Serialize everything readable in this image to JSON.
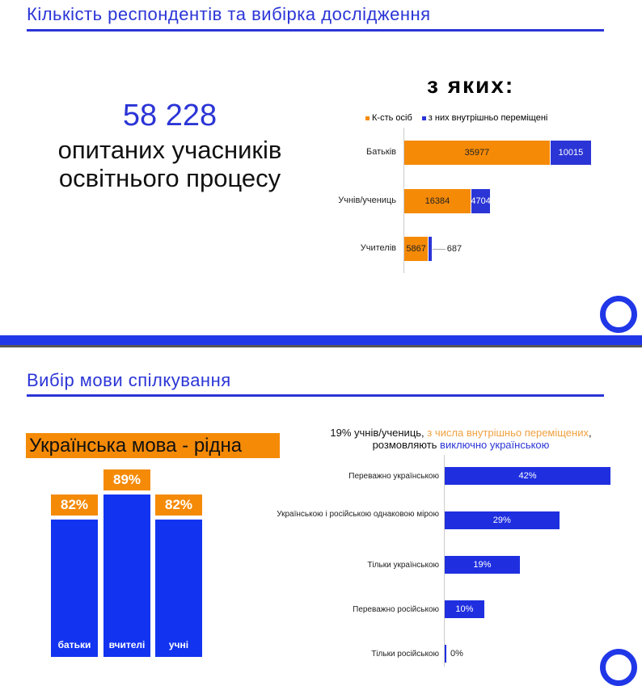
{
  "slide1": {
    "title": "Кількість респондентів та вибірка дослідження",
    "total": "58 228",
    "total_caption_1": "опитаних учасників",
    "total_caption_2": "освітнього процесу",
    "chart_heading": "з яких:"
  },
  "slide2": {
    "title": "Вибір мови спілкування",
    "native_heading": "Українська мова - рідна",
    "chart_title_part1": "19% учнів/учениць, ",
    "chart_title_part2": "з числа внутрішньо переміщених",
    "chart_title_part3": ",",
    "chart_title_part4": "розмовляють ",
    "chart_title_part5": "виключно українською"
  },
  "colors": {
    "blue": "#2b35d6",
    "bar_blue": "#1234f0",
    "orange": "#f58a07"
  },
  "chart_data": [
    {
      "type": "bar",
      "orientation": "horizontal",
      "stacked": true,
      "categories": [
        "Батьків",
        "Учнів/учениць",
        "Учителів"
      ],
      "legend": "top",
      "series": [
        {
          "name": "К-сть осіб",
          "color": "#f58a07",
          "values": [
            35977,
            16384,
            5867
          ],
          "labels": [
            "35977",
            "16384",
            "5867"
          ]
        },
        {
          "name": "з них внутрішньо переміщені",
          "color": "#2b35d6",
          "values": [
            10015,
            4704,
            687
          ],
          "labels": [
            "10015",
            "4704",
            "687"
          ]
        }
      ]
    },
    {
      "type": "bar",
      "orientation": "vertical",
      "title": "Українська мова - рідна",
      "categories": [
        "батьки",
        "вчителі",
        "учні"
      ],
      "values": [
        82,
        89,
        82
      ],
      "labels": [
        "82%",
        "89%",
        "82%"
      ]
    },
    {
      "type": "bar",
      "orientation": "horizontal",
      "categories": [
        "Переважно українською",
        "Українською і російською однаковою мірою",
        "Тільки українською",
        "Переважно російською",
        "Тільки російською"
      ],
      "values": [
        42,
        29,
        19,
        10,
        0
      ],
      "labels": [
        "42%",
        "29%",
        "19%",
        "10%",
        "0%"
      ]
    }
  ]
}
